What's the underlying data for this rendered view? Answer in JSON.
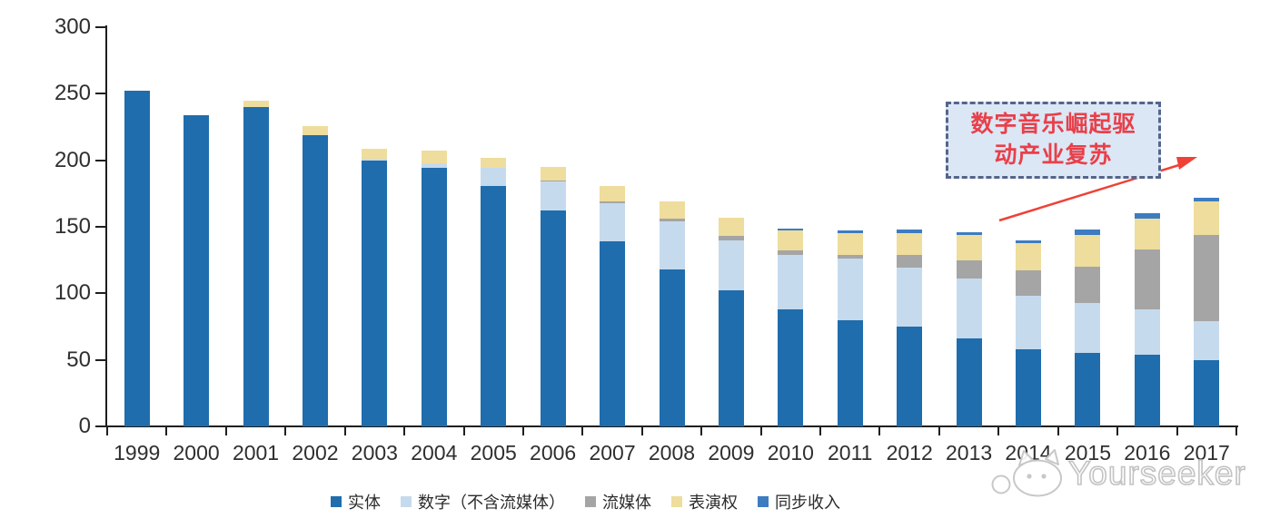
{
  "chart_data": {
    "type": "bar",
    "stacked": true,
    "categories": [
      "1999",
      "2000",
      "2001",
      "2002",
      "2003",
      "2004",
      "2005",
      "2006",
      "2007",
      "2008",
      "2009",
      "2010",
      "2011",
      "2012",
      "2013",
      "2014",
      "2015",
      "2016",
      "2017"
    ],
    "series": [
      {
        "name": "实体",
        "key": "physical",
        "color": "#1f6dad",
        "values": [
          252,
          234,
          240,
          219,
          200,
          194,
          181,
          162,
          139,
          118,
          102,
          88,
          80,
          75,
          66,
          58,
          55,
          54,
          50
        ]
      },
      {
        "name": "数字（不含流媒体）",
        "key": "digital-excl-streaming",
        "color": "#c6daed",
        "values": [
          0,
          0,
          0,
          0,
          1,
          4,
          13,
          22,
          29,
          36,
          38,
          41,
          46,
          44,
          45,
          40,
          38,
          34,
          29
        ]
      },
      {
        "name": "流媒体",
        "key": "streaming",
        "color": "#a5a5a5",
        "values": [
          0,
          0,
          0,
          0,
          0,
          0,
          0,
          1,
          1,
          2,
          3,
          3,
          3,
          10,
          14,
          19,
          27,
          45,
          65
        ]
      },
      {
        "name": "表演权",
        "key": "performance-rights",
        "color": "#eedd9c",
        "values": [
          0,
          0,
          5,
          7,
          8,
          9,
          8,
          10,
          12,
          13,
          14,
          15,
          16,
          16,
          19,
          21,
          24,
          23,
          25
        ]
      },
      {
        "name": "同步收入",
        "key": "sync-revenue",
        "color": "#3d7cc1",
        "values": [
          0,
          0,
          0,
          0,
          0,
          0,
          0,
          0,
          0,
          0,
          0,
          2,
          2,
          3,
          2,
          2,
          4,
          4,
          3
        ]
      }
    ],
    "title": "",
    "xlabel": "",
    "ylabel": "",
    "ylim": [
      0,
      300
    ],
    "yticks": [
      0,
      50,
      100,
      150,
      200,
      250,
      300
    ],
    "grid": false,
    "legend_position": "bottom"
  },
  "annotation": {
    "line1": "数字音乐崛起驱",
    "line2": "动产业复苏",
    "text_color": "#e8404a",
    "fill_color": "#dbe7f5",
    "border_color": "#55658a",
    "arrow_color": "#ef4136"
  },
  "watermark": {
    "text": "Yourseeker",
    "logo_icon": "cat-logo-icon",
    "color": "#c3c3c3"
  },
  "axis": {
    "line_color": "#1f1f1f",
    "label_color": "#2f2f2f"
  }
}
